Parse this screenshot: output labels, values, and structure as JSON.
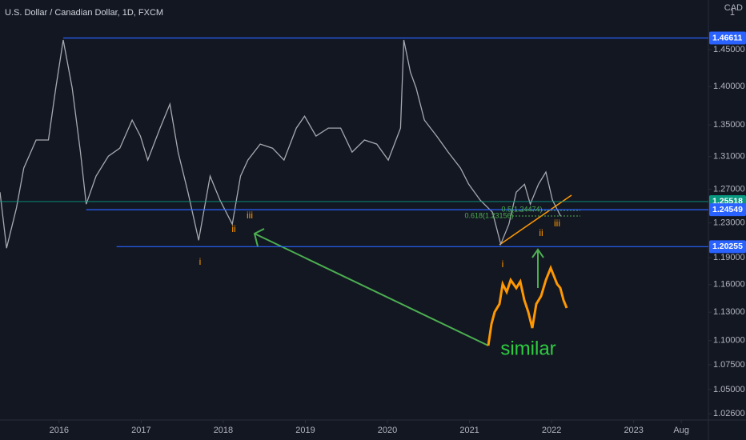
{
  "chart_data": {
    "type": "line",
    "title": "U.S. Dollar / Canadian Dollar, 1D, FXCM",
    "currency": "CAD",
    "scale_mark": "1",
    "log_scale": true,
    "color": "#a6a9b0",
    "x": [
      2015.28,
      2015.36,
      2015.48,
      2015.57,
      2015.72,
      2015.87,
      2015.96,
      2016.05,
      2016.16,
      2016.26,
      2016.33,
      2016.45,
      2016.6,
      2016.74,
      2016.89,
      2016.99,
      2017.08,
      2017.23,
      2017.35,
      2017.45,
      2017.57,
      2017.7,
      2017.84,
      2017.96,
      2018.11,
      2018.21,
      2018.3,
      2018.45,
      2018.6,
      2018.74,
      2018.89,
      2018.99,
      2019.13,
      2019.28,
      2019.43,
      2019.57,
      2019.72,
      2019.87,
      2020.01,
      2020.16,
      2020.2,
      2020.28,
      2020.35,
      2020.45,
      2020.6,
      2020.74,
      2020.89,
      2020.99,
      2021.13,
      2021.28,
      2021.38,
      2021.48,
      2021.57,
      2021.67,
      2021.74,
      2021.84,
      2021.93,
      2022.01,
      2022.11
    ],
    "values": [
      1.2664,
      1.2008,
      1.2473,
      1.2957,
      1.3307,
      1.3307,
      1.3981,
      1.4633,
      1.3981,
      1.3156,
      1.2521,
      1.2859,
      1.3105,
      1.3205,
      1.3562,
      1.3357,
      1.3056,
      1.3459,
      1.3769,
      1.3156,
      1.2664,
      1.2099,
      1.2859,
      1.2569,
      1.2285,
      1.2859,
      1.3056,
      1.3256,
      1.3205,
      1.3056,
      1.3459,
      1.3612,
      1.3357,
      1.3459,
      1.3459,
      1.3156,
      1.3307,
      1.3256,
      1.3056,
      1.3459,
      1.4633,
      1.4194,
      1.3981,
      1.3562,
      1.3357,
      1.3156,
      1.2957,
      1.276,
      1.2569,
      1.2425,
      1.2054,
      1.2285,
      1.2664,
      1.276,
      1.2521,
      1.276,
      1.2908,
      1.2569,
      1.2379
    ],
    "xlim": [
      2015.28,
      2023.91
    ],
    "ylim": [
      1.02,
      1.52
    ],
    "xticks": [
      {
        "value": 2016,
        "label": "2016"
      },
      {
        "value": 2017,
        "label": "2017"
      },
      {
        "value": 2018,
        "label": "2018"
      },
      {
        "value": 2019,
        "label": "2019"
      },
      {
        "value": 2020,
        "label": "2020"
      },
      {
        "value": 2021,
        "label": "2021"
      },
      {
        "value": 2022,
        "label": "2022"
      },
      {
        "value": 2023,
        "label": "2023"
      },
      {
        "value": 2023.58,
        "label": "Aug"
      }
    ],
    "yticks": [
      {
        "value": 1.45,
        "label": "1.45000"
      },
      {
        "value": 1.4,
        "label": "1.40000"
      },
      {
        "value": 1.35,
        "label": "1.35000"
      },
      {
        "value": 1.31,
        "label": "1.31000"
      },
      {
        "value": 1.27,
        "label": "1.27000"
      },
      {
        "value": 1.23,
        "label": "1.23000"
      },
      {
        "value": 1.19,
        "label": "1.19000"
      },
      {
        "value": 1.16,
        "label": "1.16000"
      },
      {
        "value": 1.13,
        "label": "1.13000"
      },
      {
        "value": 1.1,
        "label": "1.10000"
      },
      {
        "value": 1.075,
        "label": "1.07500"
      },
      {
        "value": 1.05,
        "label": "1.05000"
      },
      {
        "value": 1.026,
        "label": "1.02600"
      }
    ],
    "levels": [
      {
        "value": 1.46611,
        "label": "1.46611",
        "color": "#2962ff",
        "start": 2016.05
      },
      {
        "value": 1.25518,
        "label": "1.25518",
        "color": "#089981",
        "start": 2015.28
      },
      {
        "value": 1.24549,
        "label": "1.24549",
        "color": "#2962ff",
        "start": 2016.33
      },
      {
        "value": 1.20255,
        "label": "1.20255",
        "color": "#2962ff",
        "start": 2016.7
      }
    ],
    "annotations": [
      "i",
      "ii",
      "iii",
      "i",
      "ii",
      "iii",
      "similar",
      "0.618(1.23156)",
      "0.5(1.24474)"
    ]
  }
}
